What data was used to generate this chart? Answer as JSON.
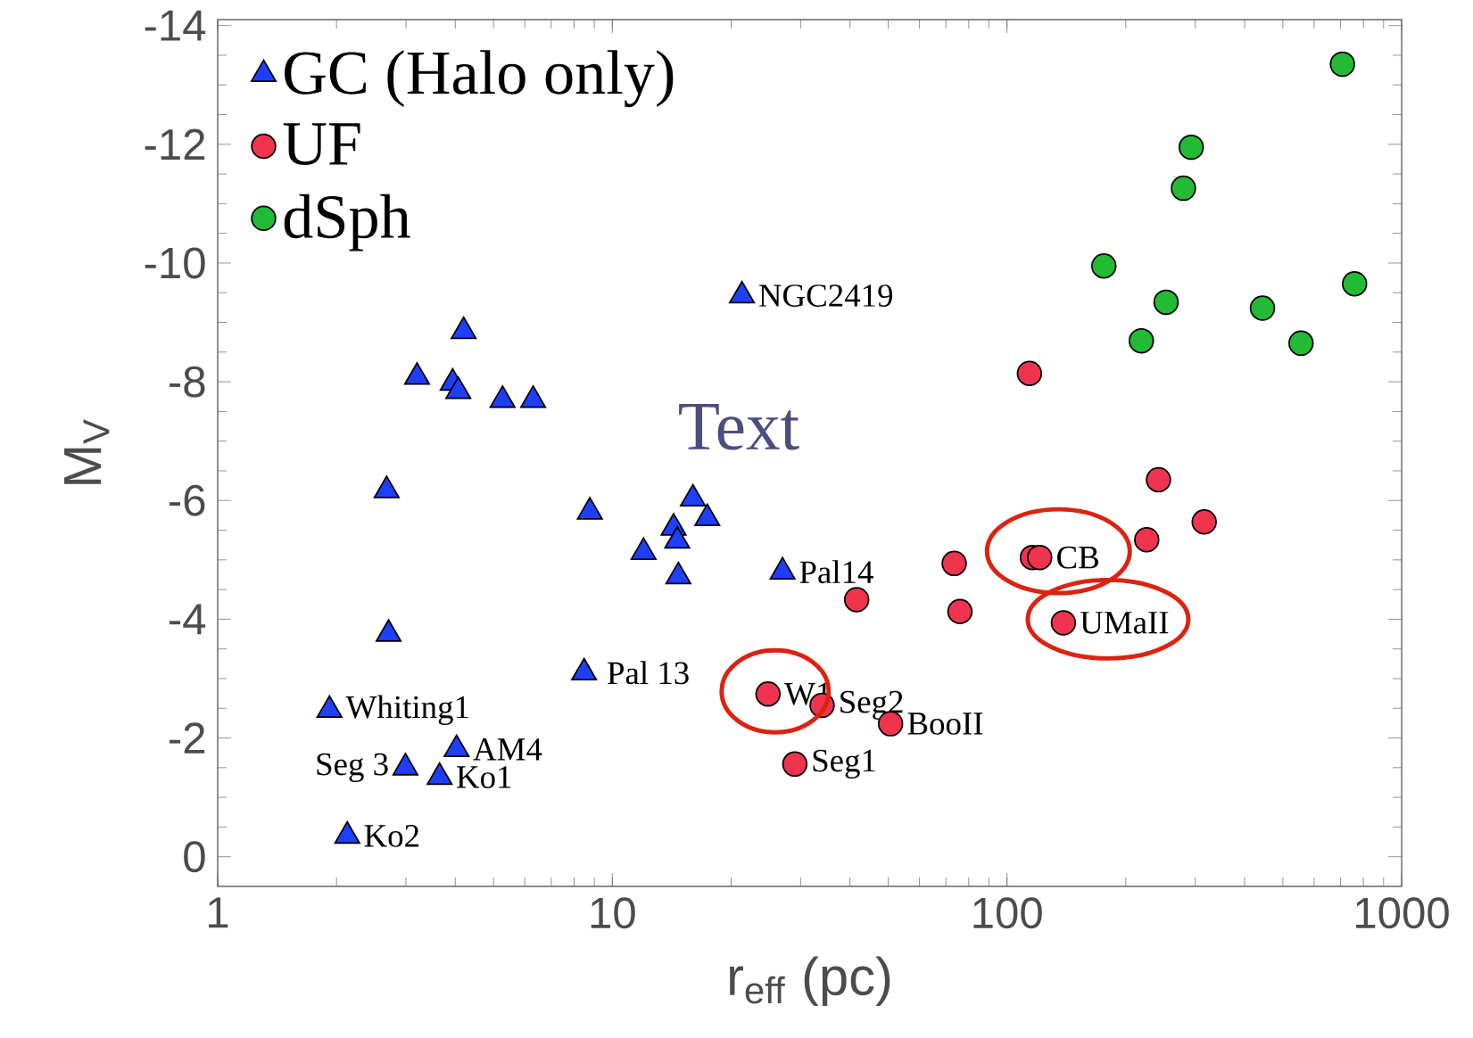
{
  "chart_data": {
    "type": "scatter",
    "xlabel": "r$_{eff}$ (pc)",
    "ylabel": "M$_{V}$",
    "log": "x",
    "xlim": [
      1,
      1000
    ],
    "ylim": [
      0.5,
      -14.1
    ],
    "xticks": [
      1,
      10,
      100,
      1000
    ],
    "yticks": [
      0,
      -2,
      -4,
      -6,
      -8,
      -10,
      -12,
      -14
    ],
    "legend": "top left",
    "series": [
      {
        "name": "GC (Halo only)",
        "color": "#1f3fff",
        "marker": "triangle",
        "x": [
          21.3,
          4.2,
          3.2,
          3.94,
          4.07,
          5.27,
          6.3,
          2.68,
          8.77,
          16.0,
          17.4,
          14.3,
          14.6,
          12.0,
          14.7,
          27.0,
          2.71,
          8.48,
          1.92,
          4.03,
          2.99,
          3.65,
          2.13
        ],
        "values": [
          -9.45,
          -8.85,
          -8.08,
          -7.98,
          -7.84,
          -7.69,
          -7.69,
          -6.17,
          -5.81,
          -6.03,
          -5.7,
          -5.54,
          -5.32,
          -5.13,
          -4.72,
          -4.8,
          -3.75,
          -3.1,
          -2.47,
          -1.81,
          -1.5,
          -1.34,
          -0.35
        ]
      },
      {
        "name": "UF",
        "color": "#f0334f",
        "marker": "circle",
        "x": [
          114,
          242,
          316,
          226,
          116,
          121,
          73.5,
          41.6,
          76,
          139,
          24.8,
          34.0,
          50.7,
          29.0
        ],
        "values": [
          -8.14,
          -6.35,
          -5.64,
          -5.34,
          -5.04,
          -5.04,
          -4.94,
          -4.33,
          -4.13,
          -3.94,
          -2.74,
          -2.55,
          -2.24,
          -1.56
        ]
      },
      {
        "name": "dSph",
        "color": "#22bb33",
        "marker": "circle",
        "x": [
          708,
          293,
          280,
          176,
          760,
          253,
          444,
          219,
          556
        ],
        "values": [
          -13.35,
          -11.95,
          -11.26,
          -9.95,
          -9.65,
          -9.34,
          -9.24,
          -8.69,
          -8.65
        ]
      }
    ],
    "annotations": [
      {
        "text": "NGC2419",
        "x": 21.3,
        "y": -9.45
      },
      {
        "text": "Pal14",
        "x": 27.0,
        "y": -4.8
      },
      {
        "text": "Pal 13",
        "x": 8.48,
        "y": -3.1
      },
      {
        "text": "Whiting1",
        "x": 1.92,
        "y": -2.47
      },
      {
        "text": "AM4",
        "x": 4.03,
        "y": -1.81
      },
      {
        "text": "Seg 3",
        "x": 2.99,
        "y": -1.5
      },
      {
        "text": "Ko1",
        "x": 3.65,
        "y": -1.34
      },
      {
        "text": "Ko2",
        "x": 2.13,
        "y": -0.35
      },
      {
        "text": "W1",
        "x": 24.8,
        "y": -2.74
      },
      {
        "text": "Seg2",
        "x": 34.0,
        "y": -2.55
      },
      {
        "text": "BooII",
        "x": 50.7,
        "y": -2.24
      },
      {
        "text": "Seg1",
        "x": 29.0,
        "y": -1.56
      },
      {
        "text": "CB",
        "x": 121,
        "y": -5.04
      },
      {
        "text": "UMaII",
        "x": 139,
        "y": -3.94
      },
      "Text"
    ]
  }
}
